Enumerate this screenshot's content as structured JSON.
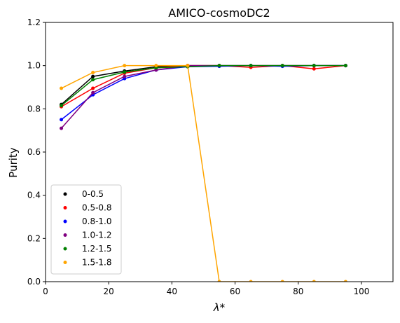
{
  "chart_data": {
    "type": "line",
    "title": "AMICO-cosmoDC2",
    "xlabel": "λ*",
    "ylabel": "Purity",
    "xlim": [
      0,
      110
    ],
    "ylim": [
      0,
      1.2
    ],
    "xticks": [
      "0",
      "20",
      "40",
      "60",
      "80",
      "100"
    ],
    "yticks": [
      "0.0",
      "0.2",
      "0.4",
      "0.6",
      "0.8",
      "1.0",
      "1.2"
    ],
    "grid": false,
    "legend_position": "lower-left",
    "x": [
      5,
      15,
      25,
      35,
      45,
      55,
      65,
      75,
      85,
      95
    ],
    "series": [
      {
        "name": "0-0.5",
        "color": "#000000",
        "values": [
          0.82,
          0.95,
          0.975,
          0.995,
          1.0,
          1.0,
          1.0,
          1.0,
          1.0,
          1.0
        ]
      },
      {
        "name": "0.5-0.8",
        "color": "#ff0000",
        "values": [
          0.81,
          0.895,
          0.965,
          0.99,
          1.0,
          1.0,
          0.992,
          1.0,
          0.985,
          1.0
        ]
      },
      {
        "name": "0.8-1.0",
        "color": "#0000ff",
        "values": [
          0.75,
          0.865,
          0.94,
          0.98,
          0.995,
          0.997,
          1.0,
          0.997,
          1.0,
          1.0
        ]
      },
      {
        "name": "1.0-1.2",
        "color": "#800080",
        "values": [
          0.71,
          0.875,
          0.95,
          0.98,
          1.0,
          1.0,
          1.0,
          1.0,
          1.0,
          1.0
        ]
      },
      {
        "name": "1.2-1.5",
        "color": "#008000",
        "values": [
          0.815,
          0.935,
          0.97,
          0.99,
          0.995,
          1.0,
          1.0,
          1.0,
          1.0,
          1.0
        ]
      },
      {
        "name": "1.5-1.8",
        "color": "#ffa500",
        "values": [
          0.895,
          0.968,
          1.0,
          1.0,
          1.0,
          0.0,
          0.0,
          0.0,
          0.0,
          0.0
        ]
      }
    ]
  }
}
